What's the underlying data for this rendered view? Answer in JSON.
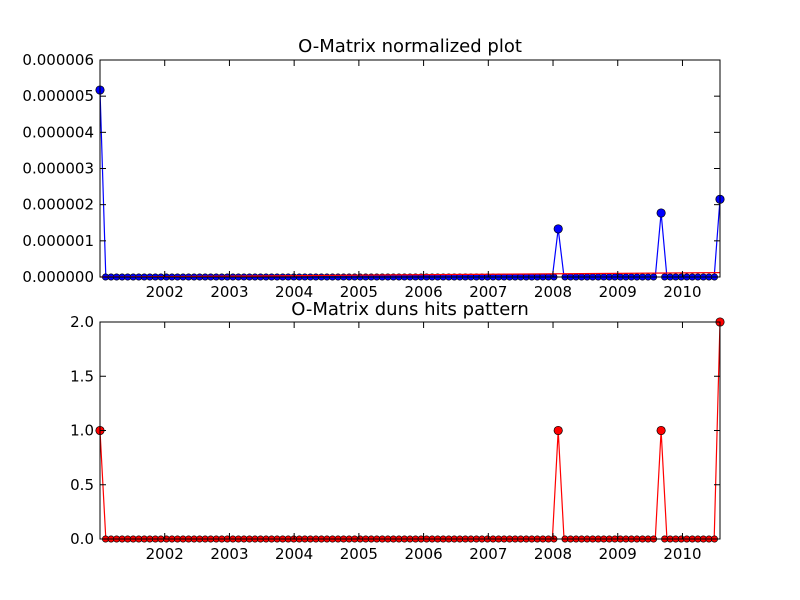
{
  "colors": {
    "background": "#ffffff",
    "axes_frame": "#000000",
    "top_series_line": "#0000ff",
    "top_series_marker": "#0000ff",
    "top_baseline": "#ff0000",
    "bottom_series_line": "#ff0000",
    "bottom_series_marker": "#ff0000"
  },
  "chart_data": [
    {
      "type": "line",
      "title": "O-Matrix normalized plot",
      "xlabel": "",
      "ylabel": "",
      "xlim": [
        2001.0,
        2010.58
      ],
      "ylim": [
        0,
        6e-06
      ],
      "grid": false,
      "yticks": [
        "0.000000",
        "0.000001",
        "0.000002",
        "0.000003",
        "0.000004",
        "0.000005",
        "0.000006"
      ],
      "ytick_values": [
        0,
        1e-06,
        2e-06,
        3e-06,
        4e-06,
        5e-06,
        6e-06
      ],
      "xticks": [
        "2002",
        "2003",
        "2004",
        "2005",
        "2006",
        "2007",
        "2008",
        "2009",
        "2010"
      ],
      "xtick_values": [
        2002,
        2003,
        2004,
        2005,
        2006,
        2007,
        2008,
        2009,
        2010
      ],
      "series": [
        {
          "marker": "circle",
          "points": [
            {
              "x": 2001.0,
              "y": 5.17e-06
            },
            {
              "x": 2008.08,
              "y": 1.33e-06
            },
            {
              "x": 2009.67,
              "y": 1.77e-06
            },
            {
              "x": 2010.58,
              "y": 2.15e-06
            }
          ]
        },
        {
          "marker": "none",
          "points": [
            {
              "x": 2001.0,
              "y": 0.0
            },
            {
              "x": 2010.58,
              "y": 1.2e-07
            }
          ]
        }
      ]
    },
    {
      "type": "line",
      "title": "O-Matrix duns hits pattern",
      "xlabel": "",
      "ylabel": "",
      "xlim": [
        2001.0,
        2010.58
      ],
      "ylim": [
        0,
        2.0
      ],
      "grid": false,
      "yticks": [
        "0.0",
        "0.5",
        "1.0",
        "1.5",
        "2.0"
      ],
      "ytick_values": [
        0,
        0.5,
        1.0,
        1.5,
        2.0
      ],
      "xticks": [
        "2002",
        "2003",
        "2004",
        "2005",
        "2006",
        "2007",
        "2008",
        "2009",
        "2010"
      ],
      "xtick_values": [
        2002,
        2003,
        2004,
        2005,
        2006,
        2007,
        2008,
        2009,
        2010
      ],
      "series": [
        {
          "marker": "circle",
          "points": [
            {
              "x": 2001.0,
              "y": 1
            },
            {
              "x": 2008.08,
              "y": 1
            },
            {
              "x": 2009.67,
              "y": 1
            },
            {
              "x": 2010.58,
              "y": 2
            }
          ]
        }
      ]
    }
  ]
}
